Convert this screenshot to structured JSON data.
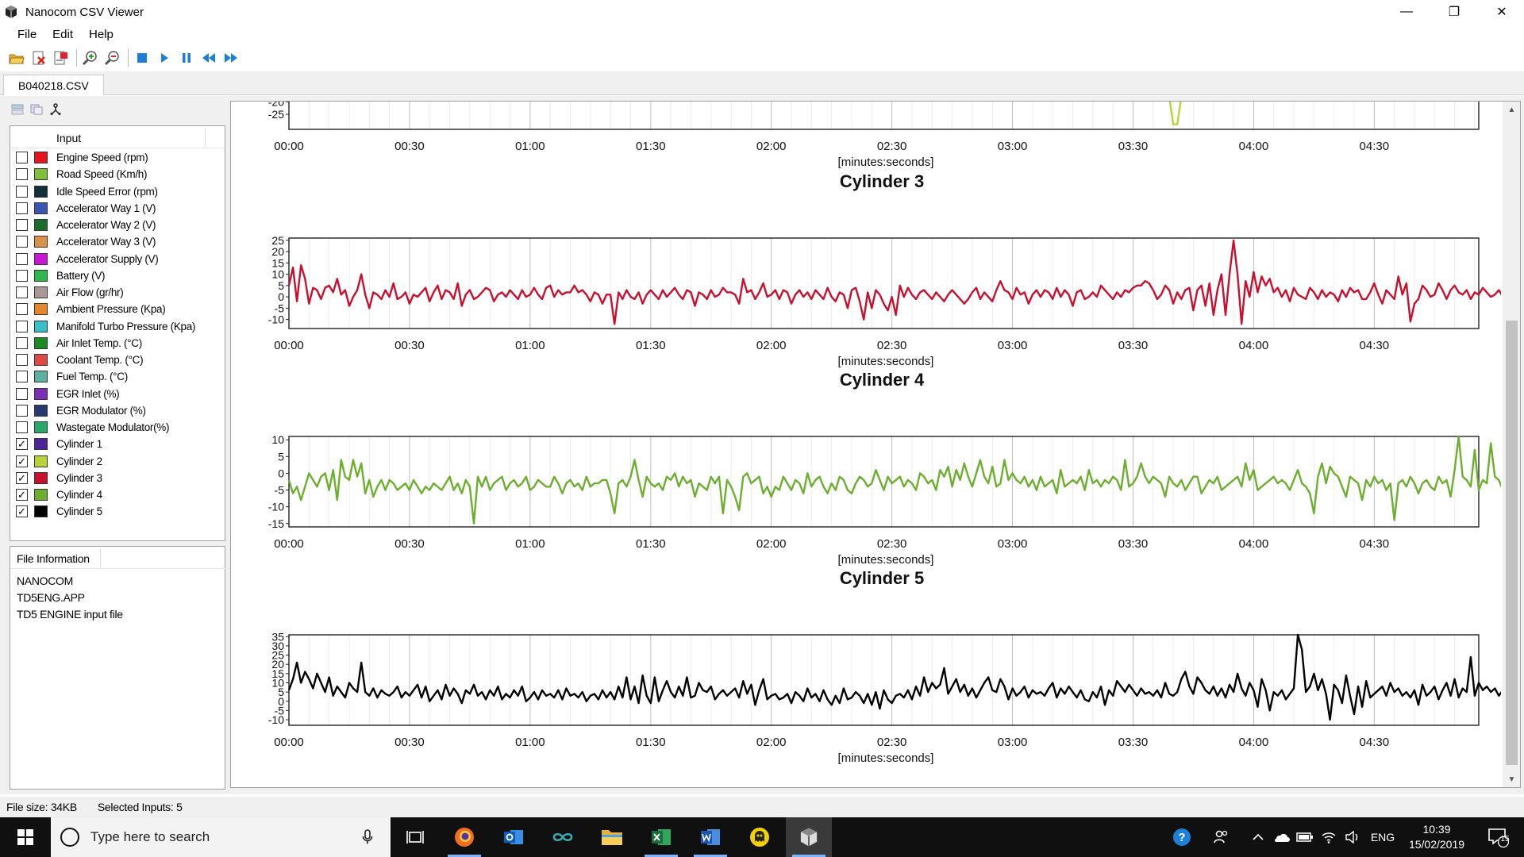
{
  "window": {
    "title": "Nanocom CSV Viewer",
    "minimize_glyph": "—",
    "maximize_glyph": "❐",
    "close_glyph": "✕"
  },
  "menu": {
    "items": [
      "File",
      "Edit",
      "Help"
    ]
  },
  "toolbar": {
    "buttons": [
      "open-file-icon",
      "close-file-icon",
      "export-icon",
      "zoom-in-icon",
      "zoom-out-icon",
      "stop-icon",
      "play-icon",
      "pause-icon",
      "rewind-icon",
      "fast-forward-icon"
    ]
  },
  "tabs": {
    "active": "B040218.CSV"
  },
  "inputs": {
    "header": "Input",
    "items": [
      {
        "label": "Engine Speed (rpm)",
        "color": "#e8141b",
        "checked": false
      },
      {
        "label": "Road Speed (Km/h)",
        "color": "#7ec03c",
        "checked": false
      },
      {
        "label": "Idle Speed Error (rpm)",
        "color": "#12303a",
        "checked": false
      },
      {
        "label": "Accelerator Way 1 (V)",
        "color": "#3b55b5",
        "checked": false
      },
      {
        "label": "Accelerator Way 2 (V)",
        "color": "#1a6b2c",
        "checked": false
      },
      {
        "label": "Accelerator Way 3 (V)",
        "color": "#d8914b",
        "checked": false
      },
      {
        "label": "Accelerator Supply (V)",
        "color": "#c815d6",
        "checked": false
      },
      {
        "label": "Battery (V)",
        "color": "#2fb84e",
        "checked": false
      },
      {
        "label": "Air Flow (gr/hr)",
        "color": "#a89898",
        "checked": false
      },
      {
        "label": "Ambient Pressure (Kpa)",
        "color": "#e5862a",
        "checked": false
      },
      {
        "label": "Manifold Turbo Pressure (Kpa)",
        "color": "#37c0c5",
        "checked": false
      },
      {
        "label": "Air Inlet Temp. (°C)",
        "color": "#1c8a24",
        "checked": false
      },
      {
        "label": "Coolant Temp. (°C)",
        "color": "#e04848",
        "checked": false
      },
      {
        "label": "Fuel Temp. (°C)",
        "color": "#5fb0a0",
        "checked": false
      },
      {
        "label": "EGR Inlet (%)",
        "color": "#7a2fb5",
        "checked": false
      },
      {
        "label": "EGR Modulator (%)",
        "color": "#243a6e",
        "checked": false
      },
      {
        "label": "Wastegate Modulator(%)",
        "color": "#27a86a",
        "checked": false
      },
      {
        "label": "Cylinder 1",
        "color": "#4b2497",
        "checked": true
      },
      {
        "label": "Cylinder 2",
        "color": "#b9d43a",
        "checked": true
      },
      {
        "label": "Cylinder 3",
        "color": "#c8102e",
        "checked": true
      },
      {
        "label": "Cylinder 4",
        "color": "#6cae2e",
        "checked": true
      },
      {
        "label": "Cylinder 5",
        "color": "#000000",
        "checked": true
      }
    ]
  },
  "file_info": {
    "header": "File Information",
    "lines": [
      "NANOCOM",
      "TD5ENG.APP",
      "TD5 ENGINE input file"
    ]
  },
  "status": {
    "file_size": "File size: 34KB",
    "selected": "Selected Inputs: 5"
  },
  "taskbar": {
    "search_placeholder": "Type here to search",
    "language": "ENG",
    "time": "10:39",
    "date": "15/02/2019",
    "notifications": "15"
  },
  "chart_data": [
    {
      "type": "line",
      "title": "",
      "series": [
        {
          "name": "Cylinder 2",
          "color": "#b9d43a"
        }
      ],
      "xlabel": "[minutes:seconds]",
      "x_ticks": [
        "00:00",
        "00:30",
        "01:00",
        "01:30",
        "02:00",
        "02:30",
        "03:00",
        "03:30",
        "04:00",
        "04:30"
      ],
      "y_ticks": [
        "-20",
        "-25"
      ],
      "x_range_seconds": [
        0,
        296
      ],
      "ylim": [
        -31,
        -18
      ],
      "x_seconds": [
        219,
        220,
        221,
        222
      ],
      "values": [
        -18,
        -29,
        -29,
        -18
      ]
    },
    {
      "type": "line",
      "title": "Cylinder 3",
      "series": [
        {
          "name": "Cylinder 3",
          "color": "#c8102e"
        }
      ],
      "xlabel": "[minutes:seconds]",
      "x_ticks": [
        "00:00",
        "00:30",
        "01:00",
        "01:30",
        "02:00",
        "02:30",
        "03:00",
        "03:30",
        "04:00",
        "04:30"
      ],
      "y_ticks": [
        "25",
        "20",
        "15",
        "10",
        "5",
        "0",
        "-5",
        "-10"
      ],
      "ylim": [
        -14,
        26
      ],
      "x_range_seconds": [
        0,
        296
      ],
      "sample_interval_s": 1,
      "values": [
        5,
        13,
        -2,
        14,
        8,
        -3,
        4,
        3,
        -1,
        4,
        5,
        2,
        8,
        1,
        3,
        -4,
        0,
        3,
        10,
        1,
        -5,
        2,
        1,
        -1,
        3,
        0,
        6,
        -1,
        0,
        2,
        -3,
        1,
        0,
        2,
        4,
        -2,
        2,
        5,
        -1,
        3,
        2,
        -1,
        6,
        -4,
        1,
        3,
        -1,
        0,
        2,
        4,
        3,
        -2,
        1,
        2,
        0,
        3,
        1,
        -1,
        3,
        0,
        1,
        4,
        1,
        -1,
        4,
        5,
        0,
        3,
        1,
        2,
        2,
        5,
        2,
        3,
        1,
        -2,
        2,
        1,
        -3,
        1,
        1,
        -12,
        2,
        -1,
        3,
        0,
        -1,
        2,
        -3,
        1,
        3,
        1,
        -1,
        3,
        0,
        2,
        4,
        1,
        -1,
        3,
        2,
        -4,
        2,
        1,
        -1,
        3,
        0,
        1,
        4,
        2,
        2,
        1,
        -3,
        8,
        2,
        3,
        -1,
        2,
        6,
        0,
        1,
        3,
        -1,
        3,
        2,
        -3,
        1,
        3,
        0,
        2,
        -1,
        3,
        1,
        -1,
        4,
        0,
        -2,
        2,
        1,
        -5,
        3,
        4,
        -2,
        -10,
        2,
        -5,
        3,
        1,
        -3,
        -6,
        0,
        -8,
        5,
        0,
        4,
        1,
        -1,
        2,
        3,
        1,
        -1,
        2,
        0,
        -2,
        1,
        3,
        1,
        -1,
        -3,
        -1,
        2,
        4,
        -1,
        2,
        0,
        -2,
        3,
        7,
        3,
        2,
        -1,
        4,
        1,
        2,
        -3,
        1,
        3,
        0,
        3,
        2,
        -1,
        4,
        0,
        3,
        1,
        -4,
        2,
        3,
        -1,
        0,
        2,
        0,
        5,
        3,
        1,
        -1,
        2,
        0,
        3,
        2,
        4,
        5,
        5,
        7,
        6,
        3,
        -1,
        1,
        5,
        3,
        -3,
        2,
        -1,
        3,
        4,
        -6,
        3,
        5,
        -4,
        6,
        -8,
        3,
        10,
        -8,
        10,
        25,
        10,
        -12,
        7,
        0,
        11,
        2,
        9,
        5,
        8,
        2,
        4,
        0,
        3,
        -2,
        4,
        1,
        0,
        -1,
        4,
        2,
        -1,
        3,
        0,
        2,
        1,
        -2,
        3,
        0,
        4,
        2,
        3,
        -1,
        -1,
        2,
        6,
        1,
        -3,
        3,
        1,
        -1,
        9,
        1,
        6,
        -11,
        -3,
        -1,
        5,
        3,
        0,
        1,
        6,
        3,
        -1,
        3,
        5,
        2,
        1,
        3,
        -1,
        2,
        1,
        4,
        2,
        0,
        1,
        3,
        0,
        2,
        1,
        -1,
        3,
        1,
        1
      ]
    },
    {
      "type": "line",
      "title": "Cylinder 4",
      "series": [
        {
          "name": "Cylinder 4",
          "color": "#6cae2e"
        }
      ],
      "xlabel": "[minutes:seconds]",
      "x_ticks": [
        "00:00",
        "00:30",
        "01:00",
        "01:30",
        "02:00",
        "02:30",
        "03:00",
        "03:30",
        "04:00",
        "04:30"
      ],
      "y_ticks": [
        "10",
        "5",
        "0",
        "-5",
        "-10",
        "-15"
      ],
      "ylim": [
        -16,
        11
      ],
      "x_range_seconds": [
        0,
        296
      ],
      "sample_interval_s": 1,
      "values": [
        -2,
        -6,
        -4,
        -8,
        -4,
        0,
        -2,
        -4,
        -1,
        0,
        -5,
        1,
        -8,
        4,
        -1,
        -2,
        4,
        -1,
        3,
        -6,
        -2,
        -7,
        -4,
        -2,
        -5,
        -2,
        -3,
        -5,
        -4,
        -3,
        -5,
        -2,
        -4,
        -6,
        -4,
        -5,
        -3,
        -4,
        -5,
        -3,
        -1,
        -5,
        -3,
        -6,
        -2,
        -4,
        -15,
        -1,
        -4,
        -1,
        -5,
        -3,
        -2,
        -1,
        -5,
        -3,
        -2,
        -4,
        -3,
        -1,
        -5,
        -4,
        -2,
        -3,
        -4,
        -4,
        -1,
        -3,
        -6,
        -3,
        -2,
        -4,
        -3,
        -5,
        -1,
        -4,
        -3,
        -3,
        -2,
        -2,
        -6,
        -12,
        -3,
        -2,
        -4,
        -1,
        4,
        -2,
        -7,
        -1,
        -3,
        -4,
        -3,
        -5,
        -1,
        -2,
        0,
        -4,
        -1,
        -3,
        -2,
        -7,
        -3,
        -4,
        -5,
        -1,
        -3,
        -1,
        -12,
        -2,
        -4,
        -7,
        -11,
        -1,
        0,
        -3,
        -2,
        -1,
        -6,
        -4,
        -7,
        -4,
        -5,
        -1,
        -3,
        -5,
        -2,
        -3,
        -6,
        0,
        -4,
        -2,
        -1,
        -4,
        -6,
        -3,
        -5,
        -1,
        -2,
        -5,
        -6,
        -3,
        -1,
        -2,
        -4,
        -3,
        1,
        -2,
        -5,
        -1,
        -3,
        -2,
        -1,
        -4,
        -2,
        -3,
        -5,
        0,
        -1,
        -3,
        -2,
        -5,
        1,
        -1,
        2,
        -4,
        1,
        -2,
        3,
        -1,
        -4,
        0,
        4,
        -1,
        -3,
        2,
        -4,
        -3,
        4,
        -2,
        0,
        -2,
        -3,
        -1,
        -4,
        -2,
        -5,
        -1,
        -4,
        -3,
        -2,
        -6,
        1,
        -4,
        -3,
        -2,
        -3,
        -1,
        -5,
        1,
        -3,
        -2,
        -4,
        -2,
        -3,
        -1,
        -2,
        -5,
        4,
        -4,
        -3,
        -1,
        3,
        -1,
        -3,
        -1,
        -2,
        -3,
        -7,
        -1,
        -3,
        -4,
        -2,
        -5,
        -3,
        -1,
        -1,
        -6,
        -4,
        -2,
        -3,
        -1,
        -5,
        -4,
        -3,
        -2,
        -1,
        -4,
        3,
        -2,
        1,
        -5,
        -4,
        -3,
        -2,
        -1,
        -3,
        -2,
        -3,
        -5,
        -2,
        1,
        -3,
        -4,
        -6,
        -12,
        -1,
        3,
        -3,
        2,
        0,
        -1,
        -4,
        -7,
        -1,
        -2,
        -3,
        -8,
        -2,
        -4,
        -1,
        -3,
        -2,
        -5,
        -3,
        -14,
        -3,
        -2,
        -4,
        -1,
        -3,
        -6,
        -3,
        -2,
        -4,
        -5,
        -1,
        -3,
        -2,
        -7,
        1,
        11,
        -1,
        -2,
        -4,
        7,
        -5,
        -2,
        -3,
        9,
        -1,
        -2,
        -5,
        -3,
        -1,
        -4,
        -3,
        -1,
        -2,
        -4,
        -2,
        -1,
        -3,
        -2,
        -1,
        -3,
        -1
      ]
    },
    {
      "type": "line",
      "title": "Cylinder 5",
      "series": [
        {
          "name": "Cylinder 5",
          "color": "#000000"
        }
      ],
      "xlabel": "[minutes:seconds]",
      "x_ticks": [
        "00:00",
        "00:30",
        "01:00",
        "01:30",
        "02:00",
        "02:30",
        "03:00",
        "03:30",
        "04:00",
        "04:30"
      ],
      "y_ticks": [
        "35",
        "30",
        "25",
        "20",
        "15",
        "10",
        "5",
        "0",
        "-5",
        "-10"
      ],
      "ylim": [
        -13,
        36
      ],
      "x_range_seconds": [
        0,
        296
      ],
      "sample_interval_s": 1,
      "values": [
        6,
        12,
        21,
        10,
        16,
        12,
        7,
        15,
        10,
        5,
        13,
        3,
        8,
        5,
        2,
        10,
        7,
        5,
        21,
        5,
        3,
        7,
        2,
        6,
        4,
        3,
        5,
        8,
        2,
        5,
        3,
        6,
        9,
        2,
        8,
        0,
        3,
        6,
        1,
        9,
        3,
        7,
        4,
        -1,
        6,
        4,
        9,
        3,
        5,
        1,
        6,
        3,
        8,
        1,
        4,
        2,
        6,
        3,
        8,
        0,
        2,
        5,
        1,
        6,
        3,
        4,
        2,
        6,
        1,
        7,
        3,
        4,
        2,
        5,
        0,
        3,
        4,
        1,
        6,
        2,
        5,
        1,
        8,
        2,
        13,
        1,
        8,
        -1,
        14,
        3,
        -1,
        13,
        0,
        6,
        11,
        5,
        2,
        8,
        3,
        13,
        2,
        3,
        10,
        6,
        5,
        8,
        1,
        4,
        6,
        3,
        5,
        7,
        2,
        11,
        4,
        9,
        -2,
        6,
        12,
        1,
        3,
        4,
        1,
        2,
        4,
        -1,
        5,
        3,
        0,
        7,
        2,
        4,
        0,
        6,
        1,
        -2,
        3,
        -1,
        7,
        1,
        2,
        5,
        3,
        -1,
        4,
        -2,
        5,
        -4,
        6,
        1,
        -1,
        3,
        4,
        2,
        6,
        1,
        8,
        3,
        13,
        5,
        10,
        7,
        9,
        18,
        4,
        8,
        12,
        5,
        9,
        3,
        7,
        2,
        6,
        10,
        13,
        6,
        5,
        12,
        8,
        1,
        7,
        3,
        5,
        8,
        2,
        6,
        4,
        5,
        3,
        7,
        10,
        2,
        7,
        4,
        8,
        5,
        2,
        6,
        1,
        0,
        5,
        2,
        8,
        -2,
        6,
        3,
        11,
        8,
        5,
        9,
        6,
        3,
        7,
        4,
        5,
        3,
        6,
        2,
        10,
        4,
        3,
        5,
        12,
        16,
        8,
        4,
        13,
        10,
        6,
        4,
        8,
        3,
        7,
        2,
        9,
        5,
        15,
        7,
        3,
        10,
        6,
        -3,
        12,
        6,
        -5,
        5,
        3,
        6,
        1,
        4,
        7,
        36,
        28,
        5,
        8,
        15,
        6,
        12,
        4,
        -10,
        9,
        6,
        -1,
        14,
        3,
        -7,
        8,
        -3,
        11,
        2,
        4,
        6,
        8,
        3,
        10,
        5,
        7,
        3,
        5,
        2,
        6,
        -2,
        9,
        3,
        5,
        8,
        1,
        6,
        10,
        3,
        12,
        2,
        7,
        5,
        24,
        3,
        10,
        6,
        8,
        5,
        7,
        3,
        6,
        4,
        10,
        5,
        12,
        14,
        5,
        8,
        3,
        13,
        9,
        15,
        8,
        7,
        12,
        6,
        9,
        13,
        11,
        8,
        10,
        7,
        12,
        9,
        10,
        8,
        11
      ]
    }
  ]
}
